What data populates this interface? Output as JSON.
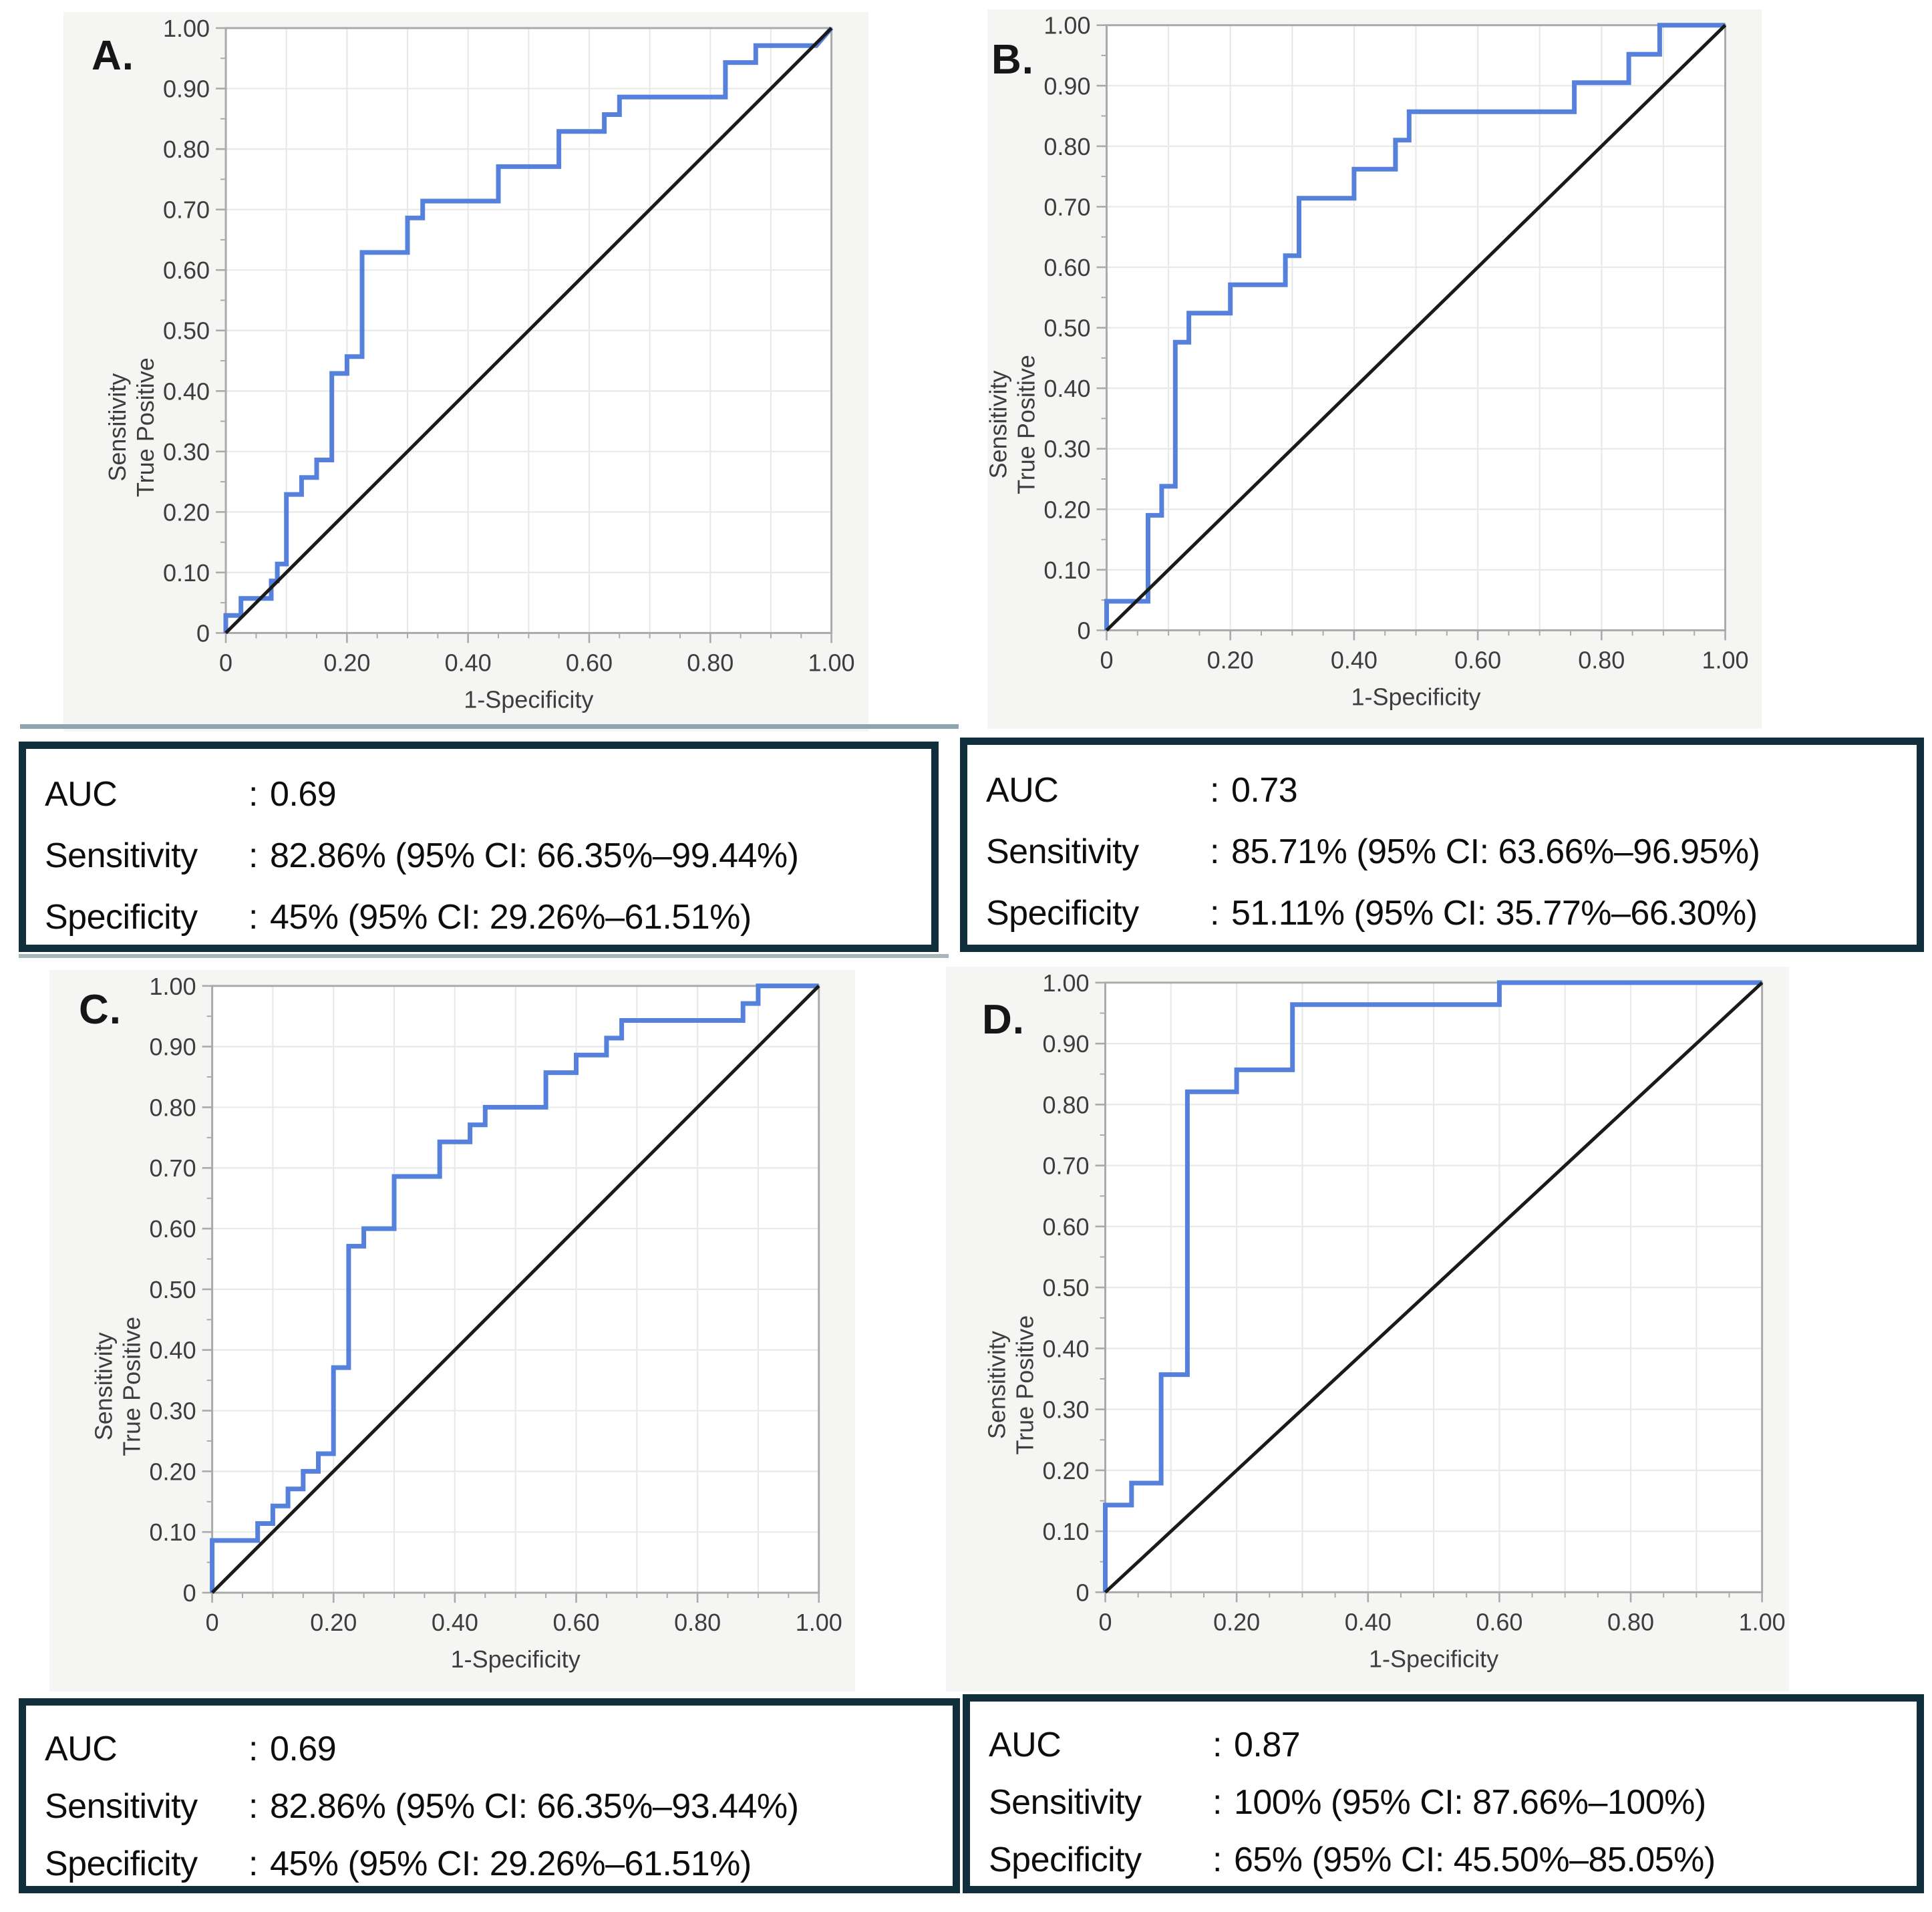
{
  "figure": {
    "separator": ":",
    "colors": {
      "curve_blue": "#5580db",
      "diagonal_black": "#1a1a1a",
      "grid": "#e9e9e9",
      "frame": "#aaaaaa",
      "text": "#3d3d3d",
      "panel_background": "#f5f5f3",
      "plot_background": "#ffffff",
      "stat_box_border": "#102e3c"
    },
    "panels": [
      {
        "label": "A.",
        "stats": {
          "rows": [
            {
              "name": "AUC",
              "value": "0.69"
            },
            {
              "name": "Sensitivity",
              "value": "82.86% (95% CI: 66.35%–99.44%)"
            },
            {
              "name": "Specificity",
              "value": "45% (95% CI: 29.26%–61.51%)"
            }
          ]
        }
      },
      {
        "label": "B.",
        "stats": {
          "rows": [
            {
              "name": "AUC",
              "value": "0.73"
            },
            {
              "name": "Sensitivity",
              "value": "85.71% (95% CI: 63.66%–96.95%)"
            },
            {
              "name": "Specificity",
              "value": "51.11% (95% CI: 35.77%–66.30%)"
            }
          ]
        }
      },
      {
        "label": "C.",
        "stats": {
          "rows": [
            {
              "name": "AUC",
              "value": "0.69"
            },
            {
              "name": "Sensitivity",
              "value": "82.86% (95% CI: 66.35%–93.44%)"
            },
            {
              "name": "Specificity",
              "value": "45% (95% CI: 29.26%–61.51%)"
            }
          ]
        }
      },
      {
        "label": "D.",
        "stats": {
          "rows": [
            {
              "name": "AUC",
              "value": "0.87"
            },
            {
              "name": "Sensitivity",
              "value": "100% (95% CI: 87.66%–100%)"
            },
            {
              "name": "Specificity",
              "value": "65% (95% CI: 45.50%–85.05%)"
            }
          ]
        }
      }
    ]
  },
  "chart_data": [
    {
      "type": "line",
      "panel": "A",
      "title": "",
      "xlabel": "1-Specificity",
      "ylabel": [
        "Sensitivity",
        "True Positive"
      ],
      "xlim": [
        0,
        1
      ],
      "ylim": [
        0,
        1
      ],
      "auc": 0.69,
      "grid_step": 0.1,
      "minor_tick_step": 0.05,
      "legend": "none",
      "xticks": {
        "values": [
          0,
          0.2,
          0.4,
          0.6,
          0.8,
          1.0
        ],
        "labels": [
          "0",
          "0.20",
          "0.40",
          "0.60",
          "0.80",
          "1.00"
        ]
      },
      "yticks": {
        "values": [
          0,
          0.1,
          0.2,
          0.3,
          0.4,
          0.5,
          0.6,
          0.7,
          0.8,
          0.9,
          1.0
        ],
        "labels": [
          "0",
          "0.10",
          "0.20",
          "0.30",
          "0.40",
          "0.50",
          "0.60",
          "0.70",
          "0.80",
          "0.90",
          "1.00"
        ]
      },
      "layout": {
        "left": 0.2017,
        "right": 0.954,
        "top": 0.0223,
        "bottom": 0.863
      },
      "series": [
        {
          "name": "ROC curve",
          "color": "#5580db",
          "stroke_width": 7,
          "points": [
            [
              0,
              0
            ],
            [
              0,
              0.029
            ],
            [
              0.025,
              0.029
            ],
            [
              0.025,
              0.057
            ],
            [
              0.075,
              0.057
            ],
            [
              0.075,
              0.086
            ],
            [
              0.085,
              0.086
            ],
            [
              0.085,
              0.114
            ],
            [
              0.1,
              0.114
            ],
            [
              0.1,
              0.229
            ],
            [
              0.125,
              0.229
            ],
            [
              0.125,
              0.257
            ],
            [
              0.15,
              0.257
            ],
            [
              0.15,
              0.286
            ],
            [
              0.175,
              0.286
            ],
            [
              0.175,
              0.429
            ],
            [
              0.2,
              0.429
            ],
            [
              0.2,
              0.457
            ],
            [
              0.225,
              0.457
            ],
            [
              0.225,
              0.629
            ],
            [
              0.3,
              0.629
            ],
            [
              0.3,
              0.686
            ],
            [
              0.325,
              0.686
            ],
            [
              0.325,
              0.714
            ],
            [
              0.45,
              0.714
            ],
            [
              0.45,
              0.771
            ],
            [
              0.55,
              0.771
            ],
            [
              0.55,
              0.829
            ],
            [
              0.625,
              0.829
            ],
            [
              0.625,
              0.857
            ],
            [
              0.65,
              0.857
            ],
            [
              0.65,
              0.886
            ],
            [
              0.825,
              0.886
            ],
            [
              0.825,
              0.943
            ],
            [
              0.875,
              0.943
            ],
            [
              0.875,
              0.971
            ],
            [
              0.975,
              0.971
            ],
            [
              1,
              1
            ]
          ]
        },
        {
          "name": "Chance diagonal",
          "color": "#1a1a1a",
          "stroke_width": 5,
          "points": [
            [
              0,
              0
            ],
            [
              1,
              1
            ]
          ]
        }
      ]
    },
    {
      "type": "line",
      "panel": "B",
      "title": "",
      "xlabel": "1-Specificity",
      "ylabel": [
        "Sensitivity",
        "True Positive"
      ],
      "xlim": [
        0,
        1
      ],
      "ylim": [
        0,
        1
      ],
      "auc": 0.73,
      "grid_step": 0.1,
      "minor_tick_step": 0.05,
      "legend": "none",
      "xticks": {
        "values": [
          0,
          0.2,
          0.4,
          0.6,
          0.8,
          1.0
        ],
        "labels": [
          "0",
          "0.20",
          "0.40",
          "0.60",
          "0.80",
          "1.00"
        ]
      },
      "yticks": {
        "values": [
          0,
          0.1,
          0.2,
          0.3,
          0.4,
          0.5,
          0.6,
          0.7,
          0.8,
          0.9,
          1.0
        ],
        "labels": [
          "0",
          "0.10",
          "0.20",
          "0.30",
          "0.40",
          "0.50",
          "0.60",
          "0.70",
          "0.80",
          "0.90",
          "1.00"
        ]
      },
      "layout": {
        "left": 0.154,
        "right": 0.953,
        "top": 0.022,
        "bottom": 0.863
      },
      "series": [
        {
          "name": "ROC curve",
          "color": "#5580db",
          "stroke_width": 7,
          "points": [
            [
              0,
              0
            ],
            [
              0,
              0.048
            ],
            [
              0.067,
              0.048
            ],
            [
              0.067,
              0.19
            ],
            [
              0.089,
              0.19
            ],
            [
              0.089,
              0.238
            ],
            [
              0.111,
              0.238
            ],
            [
              0.111,
              0.476
            ],
            [
              0.133,
              0.476
            ],
            [
              0.133,
              0.524
            ],
            [
              0.2,
              0.524
            ],
            [
              0.2,
              0.571
            ],
            [
              0.289,
              0.571
            ],
            [
              0.289,
              0.619
            ],
            [
              0.311,
              0.619
            ],
            [
              0.311,
              0.714
            ],
            [
              0.4,
              0.714
            ],
            [
              0.4,
              0.762
            ],
            [
              0.467,
              0.762
            ],
            [
              0.467,
              0.81
            ],
            [
              0.489,
              0.81
            ],
            [
              0.489,
              0.857
            ],
            [
              0.756,
              0.857
            ],
            [
              0.756,
              0.905
            ],
            [
              0.844,
              0.905
            ],
            [
              0.844,
              0.952
            ],
            [
              0.894,
              0.952
            ],
            [
              0.894,
              1
            ],
            [
              1,
              1
            ]
          ]
        },
        {
          "name": "Chance diagonal",
          "color": "#1a1a1a",
          "stroke_width": 5,
          "points": [
            [
              0,
              0
            ],
            [
              1,
              1
            ]
          ]
        }
      ]
    },
    {
      "type": "line",
      "panel": "C",
      "title": "",
      "xlabel": "1-Specificity",
      "ylabel": [
        "Sensitivity",
        "True Positive"
      ],
      "xlim": [
        0,
        1
      ],
      "ylim": [
        0,
        1
      ],
      "auc": 0.69,
      "grid_step": 0.1,
      "minor_tick_step": 0.05,
      "legend": "none",
      "xticks": {
        "values": [
          0,
          0.2,
          0.4,
          0.6,
          0.8,
          1.0
        ],
        "labels": [
          "0",
          "0.20",
          "0.40",
          "0.60",
          "0.80",
          "1.00"
        ]
      },
      "yticks": {
        "values": [
          0,
          0.1,
          0.2,
          0.3,
          0.4,
          0.5,
          0.6,
          0.7,
          0.8,
          0.9,
          1.0
        ],
        "labels": [
          "0",
          "0.10",
          "0.20",
          "0.30",
          "0.40",
          "0.50",
          "0.60",
          "0.70",
          "0.80",
          "0.90",
          "1.00"
        ]
      },
      "layout": {
        "left": 0.202,
        "right": 0.955,
        "top": 0.022,
        "bottom": 0.863
      },
      "series": [
        {
          "name": "ROC curve",
          "color": "#5580db",
          "stroke_width": 7,
          "points": [
            [
              0,
              0
            ],
            [
              0,
              0.086
            ],
            [
              0.075,
              0.086
            ],
            [
              0.075,
              0.114
            ],
            [
              0.1,
              0.114
            ],
            [
              0.1,
              0.143
            ],
            [
              0.125,
              0.143
            ],
            [
              0.125,
              0.171
            ],
            [
              0.15,
              0.171
            ],
            [
              0.15,
              0.2
            ],
            [
              0.175,
              0.2
            ],
            [
              0.175,
              0.229
            ],
            [
              0.2,
              0.229
            ],
            [
              0.2,
              0.371
            ],
            [
              0.225,
              0.371
            ],
            [
              0.225,
              0.571
            ],
            [
              0.25,
              0.571
            ],
            [
              0.25,
              0.6
            ],
            [
              0.3,
              0.6
            ],
            [
              0.3,
              0.686
            ],
            [
              0.375,
              0.686
            ],
            [
              0.375,
              0.743
            ],
            [
              0.425,
              0.743
            ],
            [
              0.425,
              0.771
            ],
            [
              0.45,
              0.771
            ],
            [
              0.45,
              0.8
            ],
            [
              0.55,
              0.8
            ],
            [
              0.55,
              0.857
            ],
            [
              0.6,
              0.857
            ],
            [
              0.6,
              0.886
            ],
            [
              0.65,
              0.886
            ],
            [
              0.65,
              0.914
            ],
            [
              0.675,
              0.914
            ],
            [
              0.675,
              0.943
            ],
            [
              0.875,
              0.943
            ],
            [
              0.875,
              0.971
            ],
            [
              0.9,
              0.971
            ],
            [
              0.9,
              1
            ],
            [
              1,
              1
            ]
          ]
        },
        {
          "name": "Chance diagonal",
          "color": "#1a1a1a",
          "stroke_width": 5,
          "points": [
            [
              0,
              0
            ],
            [
              1,
              1
            ]
          ]
        }
      ]
    },
    {
      "type": "line",
      "panel": "D",
      "title": "",
      "xlabel": "1-Specificity",
      "ylabel": [
        "Sensitivity",
        "True Positive"
      ],
      "xlim": [
        0,
        1
      ],
      "ylim": [
        0,
        1
      ],
      "auc": 0.87,
      "grid_step": 0.1,
      "minor_tick_step": 0.05,
      "legend": "none",
      "xticks": {
        "values": [
          0,
          0.2,
          0.4,
          0.6,
          0.8,
          1.0
        ],
        "labels": [
          "0",
          "0.20",
          "0.40",
          "0.60",
          "0.80",
          "1.00"
        ]
      },
      "yticks": {
        "values": [
          0,
          0.1,
          0.2,
          0.3,
          0.4,
          0.5,
          0.6,
          0.7,
          0.8,
          0.9,
          1.0
        ],
        "labels": [
          "0",
          "0.10",
          "0.20",
          "0.30",
          "0.40",
          "0.50",
          "0.60",
          "0.70",
          "0.80",
          "0.90",
          "1.00"
        ]
      },
      "layout": {
        "left": 0.189,
        "right": 0.968,
        "top": 0.022,
        "bottom": 0.863
      },
      "series": [
        {
          "name": "ROC curve",
          "color": "#5580db",
          "stroke_width": 7,
          "points": [
            [
              0,
              0
            ],
            [
              0,
              0.143
            ],
            [
              0.04,
              0.143
            ],
            [
              0.04,
              0.179
            ],
            [
              0.085,
              0.179
            ],
            [
              0.085,
              0.357
            ],
            [
              0.125,
              0.357
            ],
            [
              0.125,
              0.821
            ],
            [
              0.2,
              0.821
            ],
            [
              0.2,
              0.857
            ],
            [
              0.285,
              0.857
            ],
            [
              0.285,
              0.964
            ],
            [
              0.6,
              0.964
            ],
            [
              0.6,
              1
            ],
            [
              1,
              1
            ]
          ]
        },
        {
          "name": "Chance diagonal",
          "color": "#1a1a1a",
          "stroke_width": 5,
          "points": [
            [
              0,
              0
            ],
            [
              1,
              1
            ]
          ]
        }
      ]
    }
  ]
}
